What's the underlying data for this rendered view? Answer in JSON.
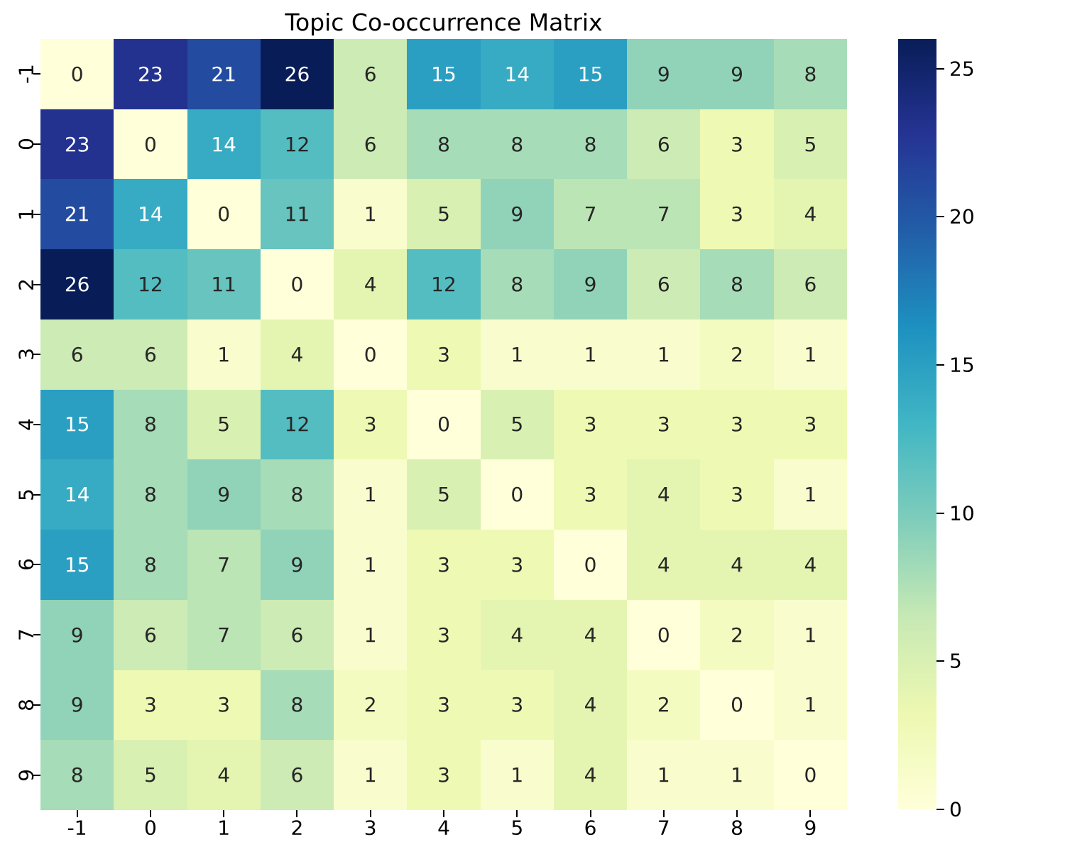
{
  "figure": {
    "background": "#ffffff",
    "title_color": "#000000",
    "tick_color": "#000000",
    "annotation_dark": "#262626",
    "annotation_light": "#ffffff"
  },
  "chart_data": {
    "type": "heatmap",
    "title": "Topic Co-occurrence Matrix",
    "xlabel": "",
    "ylabel": "",
    "x_tick_labels": [
      "-1",
      "0",
      "1",
      "2",
      "3",
      "4",
      "5",
      "6",
      "7",
      "8",
      "9"
    ],
    "y_tick_labels": [
      "-1",
      "0",
      "1",
      "2",
      "3",
      "4",
      "5",
      "6",
      "7",
      "8",
      "9"
    ],
    "matrix": [
      [
        0,
        23,
        21,
        26,
        6,
        15,
        14,
        15,
        9,
        9,
        8
      ],
      [
        23,
        0,
        14,
        12,
        6,
        8,
        8,
        8,
        6,
        3,
        5
      ],
      [
        21,
        14,
        0,
        11,
        1,
        5,
        9,
        7,
        7,
        3,
        4
      ],
      [
        26,
        12,
        11,
        0,
        4,
        12,
        8,
        9,
        6,
        8,
        6
      ],
      [
        6,
        6,
        1,
        4,
        0,
        3,
        1,
        1,
        1,
        2,
        1
      ],
      [
        15,
        8,
        5,
        12,
        3,
        0,
        5,
        3,
        3,
        3,
        3
      ],
      [
        14,
        8,
        9,
        8,
        1,
        5,
        0,
        3,
        4,
        3,
        1
      ],
      [
        15,
        8,
        7,
        9,
        1,
        3,
        3,
        0,
        4,
        4,
        4
      ],
      [
        9,
        6,
        7,
        6,
        1,
        3,
        4,
        4,
        0,
        2,
        1
      ],
      [
        9,
        3,
        3,
        8,
        2,
        3,
        3,
        4,
        2,
        0,
        1
      ],
      [
        8,
        5,
        4,
        6,
        1,
        3,
        1,
        4,
        1,
        1,
        0
      ]
    ],
    "annotated": true,
    "grid": false,
    "vmin": 0,
    "vmax": 26,
    "colormap": "YlGnBu",
    "colormap_stops": [
      [
        0.0,
        "#ffffd9"
      ],
      [
        0.125,
        "#edf8b1"
      ],
      [
        0.25,
        "#c7e9b4"
      ],
      [
        0.375,
        "#7fcdbb"
      ],
      [
        0.5,
        "#41b6c4"
      ],
      [
        0.625,
        "#1d91c0"
      ],
      [
        0.75,
        "#225ea8"
      ],
      [
        0.875,
        "#253494"
      ],
      [
        1.0,
        "#081d58"
      ]
    ],
    "colorbar": {
      "position": "right",
      "ticks": [
        0,
        5,
        10,
        15,
        20,
        25
      ]
    }
  }
}
